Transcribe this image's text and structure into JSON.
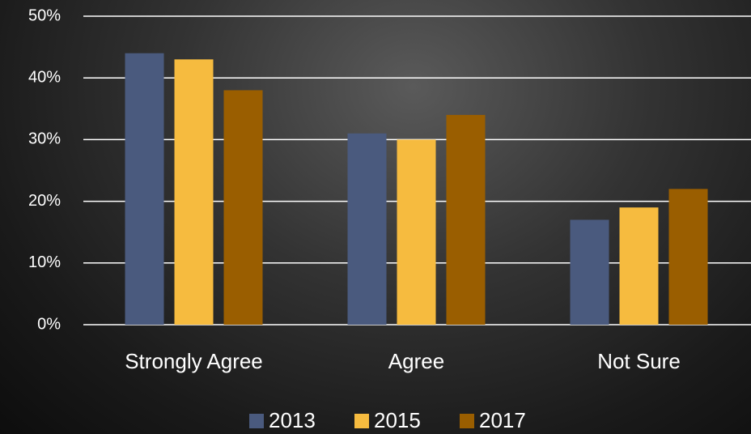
{
  "chart_data": {
    "type": "bar",
    "categories": [
      "Strongly Agree",
      "Agree",
      "Not Sure"
    ],
    "series": [
      {
        "name": "2013",
        "color": "#4a5a7e",
        "values": [
          44,
          31,
          17
        ]
      },
      {
        "name": "2015",
        "color": "#f6bb3f",
        "values": [
          43,
          30,
          19
        ]
      },
      {
        "name": "2017",
        "color": "#9a5e00",
        "values": [
          38,
          34,
          22
        ]
      }
    ],
    "ylim": [
      0,
      50
    ],
    "yticks": [
      {
        "value": 0,
        "label": "0%"
      },
      {
        "value": 10,
        "label": "10%"
      },
      {
        "value": 20,
        "label": "20%"
      },
      {
        "value": 30,
        "label": "30%"
      },
      {
        "value": 40,
        "label": "40%"
      },
      {
        "value": 50,
        "label": "50%"
      }
    ],
    "grid": true,
    "legend": "bottom"
  }
}
